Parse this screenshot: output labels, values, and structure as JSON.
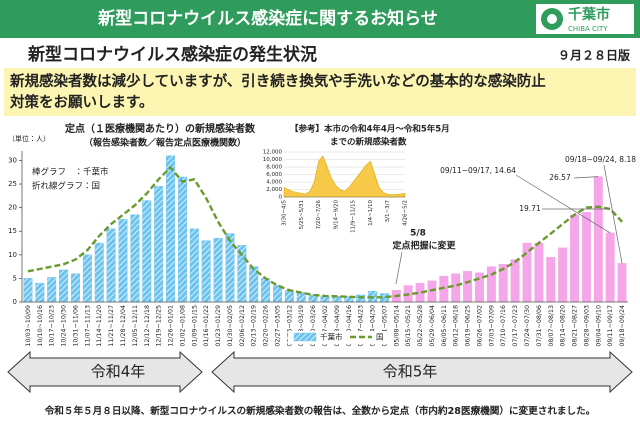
{
  "header": {
    "title": "新型コロナウイルス感染症に関するお知らせ",
    "logo": "千葉市",
    "logo_sub": "CHIBA CITY"
  },
  "title": "新型コロナウイルス感染症の発生状況",
  "edition": "９月２８日版",
  "notice": [
    "新規感染者数は減少していますが、引き続き換気や手洗いなどの基本的な感染防止",
    "対策をお願いします。"
  ],
  "chart_data": [
    {
      "type": "bar",
      "title": "定点（１医療機関あたり）の新規感染者数",
      "subtitle": "（報告感染者数／報告定点医療機関数）",
      "unit": "（単位：人）",
      "key": [
        "棒グラフ　：千葉市",
        "折れ線グラフ：国"
      ],
      "annotations": [
        "5/8",
        "定点把握に変更"
      ],
      "categories": [
        "10/03~10/09",
        "10/10~10/16",
        "10/17~10/23",
        "10/24~10/30",
        "10/31~11/06",
        "11/07~11/13",
        "11/14~11/20",
        "11/21~11/27",
        "11/28~12/04",
        "12/05~12/11",
        "12/12~12/18",
        "12/19~12/25",
        "12/26~01/01",
        "01/02~01/08",
        "01/09~01/15",
        "01/16~01/22",
        "01/23~01/29",
        "01/30~02/05",
        "02/06~02/12",
        "02/13~02/19",
        "02/20~02/26",
        "02/27~03/05",
        "03/06~03/12",
        "03/13~03/19",
        "03/20~03/26",
        "03/27~04/02",
        "04/03~04/09",
        "04/10~04/16",
        "04/17~04/23",
        "04/24~04/30",
        "05/01~05/07",
        "05/08~05/14",
        "05/15~05/21",
        "05/22~05/28",
        "05/29~06/04",
        "06/05~06/11",
        "06/12~06/18",
        "06/19~06/25",
        "06/26~07/02",
        "07/03~07/09",
        "07/10~07/16",
        "07/17~07/23",
        "07/24~07/30",
        "07/31~08/06",
        "08/07~08/13",
        "08/14~08/20",
        "08/21~08/27",
        "08/28~09/03",
        "09/04~09/10",
        "09/11~09/17",
        "09/18~09/24"
      ],
      "series": [
        {
          "name": "千葉市",
          "color": "#6cc3ee",
          "hatch": true,
          "values": [
            5,
            4,
            5.2,
            6.8,
            6,
            10,
            12.5,
            15.5,
            17.5,
            18.5,
            21.5,
            24.5,
            31,
            26.5,
            15.5,
            13,
            13.5,
            14.5,
            12,
            7.5,
            5,
            3.5,
            2.5,
            2,
            1.5,
            1.3,
            1.2,
            1.2,
            1.5,
            2.3,
            1.8,
            null,
            null,
            null,
            null,
            null,
            null,
            null,
            null,
            null,
            null,
            null,
            null,
            null,
            null,
            null,
            null,
            null,
            null,
            null,
            null
          ]
        },
        {
          "color": "#f5a6e8",
          "values": [
            null,
            null,
            null,
            null,
            null,
            null,
            null,
            null,
            null,
            null,
            null,
            null,
            null,
            null,
            null,
            null,
            null,
            null,
            null,
            null,
            null,
            null,
            null,
            null,
            null,
            null,
            null,
            null,
            null,
            null,
            null,
            2.5,
            3.5,
            4,
            4.5,
            5.5,
            6,
            6.5,
            6.2,
            7.5,
            8,
            9,
            12.5,
            12.5,
            9.5,
            11.5,
            18.5,
            19,
            26.57,
            14.64,
            8.18
          ],
          "value_labels": [
            null,
            null,
            null,
            null,
            null,
            null,
            null,
            null,
            null,
            null,
            null,
            null,
            null,
            null,
            null,
            null,
            null,
            null,
            null,
            null,
            null,
            null,
            null,
            null,
            null,
            null,
            null,
            null,
            null,
            null,
            null,
            null,
            null,
            null,
            null,
            null,
            null,
            null,
            null,
            null,
            null,
            null,
            null,
            null,
            null,
            null,
            null,
            null,
            "26.57",
            "09/11~09/17, 14.64",
            "09/18~09/24, 8.18"
          ]
        },
        {
          "name": "国",
          "type": "line",
          "color": "#6a9a2c",
          "values": [
            6.5,
            7,
            7.5,
            8,
            9,
            11,
            14,
            16.5,
            18.5,
            20.5,
            23,
            26,
            28.5,
            25.5,
            26,
            22,
            17,
            13,
            10,
            7,
            5,
            3.5,
            2.5,
            2,
            1.5,
            1.3,
            1.2,
            1.1,
            1,
            1,
            1,
            1.3,
            1.6,
            2,
            2.5,
            3,
            3.5,
            4.2,
            5,
            5.8,
            7,
            8.5,
            10.5,
            12.5,
            14.5,
            16.5,
            18.5,
            20,
            20.2,
            19.71,
            17
          ],
          "value_labels": [
            null,
            null,
            null,
            null,
            null,
            null,
            null,
            null,
            null,
            null,
            null,
            null,
            null,
            null,
            null,
            null,
            null,
            null,
            null,
            null,
            null,
            null,
            null,
            null,
            null,
            null,
            null,
            null,
            null,
            null,
            null,
            null,
            null,
            null,
            null,
            null,
            null,
            null,
            null,
            null,
            null,
            null,
            null,
            null,
            null,
            null,
            null,
            null,
            null,
            "19.71",
            null
          ]
        }
      ],
      "ylim": [
        0,
        32
      ],
      "yticks": [
        0,
        5,
        10,
        15,
        20,
        25,
        30
      ],
      "legend": "bottom"
    },
    {
      "type": "area",
      "title": [
        "【参考】本市の令和4年4月～令和5年5月",
        "までの新規感染者数"
      ],
      "color": "#f7c948",
      "categories": [
        "3/30~4/5",
        null,
        null,
        null,
        "5/25~5/31",
        null,
        null,
        null,
        "7/20~7/26",
        null,
        null,
        null,
        "9/14~9/20",
        null,
        null,
        null,
        "11/9~11/15",
        null,
        null,
        null,
        "1/4~1/10",
        null,
        null,
        null,
        "3/1~3/7",
        null,
        null,
        null,
        "4/26~5/2"
      ],
      "values": [
        2500,
        2000,
        1500,
        1200,
        1000,
        800,
        1500,
        4000,
        9500,
        11000,
        8000,
        5000,
        3000,
        2000,
        1500,
        2500,
        4000,
        5500,
        7000,
        8500,
        9500,
        6000,
        2500,
        1200,
        700,
        600,
        700,
        800,
        1000
      ],
      "ylim": [
        0,
        12000
      ],
      "yticks": [
        0,
        {
          "value": 2000,
          "label": "2,000"
        },
        {
          "value": 4000,
          "label": "4,000"
        },
        {
          "value": 6000,
          "label": "6,000"
        },
        {
          "value": 8000,
          "label": "8,000"
        },
        {
          "value": 10000,
          "label": "10,000"
        },
        {
          "value": 12000,
          "label": "12,000"
        }
      ],
      "grid": true
    }
  ],
  "eras": [
    "令和4年",
    "令和5年"
  ],
  "footer": "令和５年５月８日以降、新型コロナウイルスの新規感染者数の報告は、全数から定点（市内約28医療機関）に変更されました。"
}
